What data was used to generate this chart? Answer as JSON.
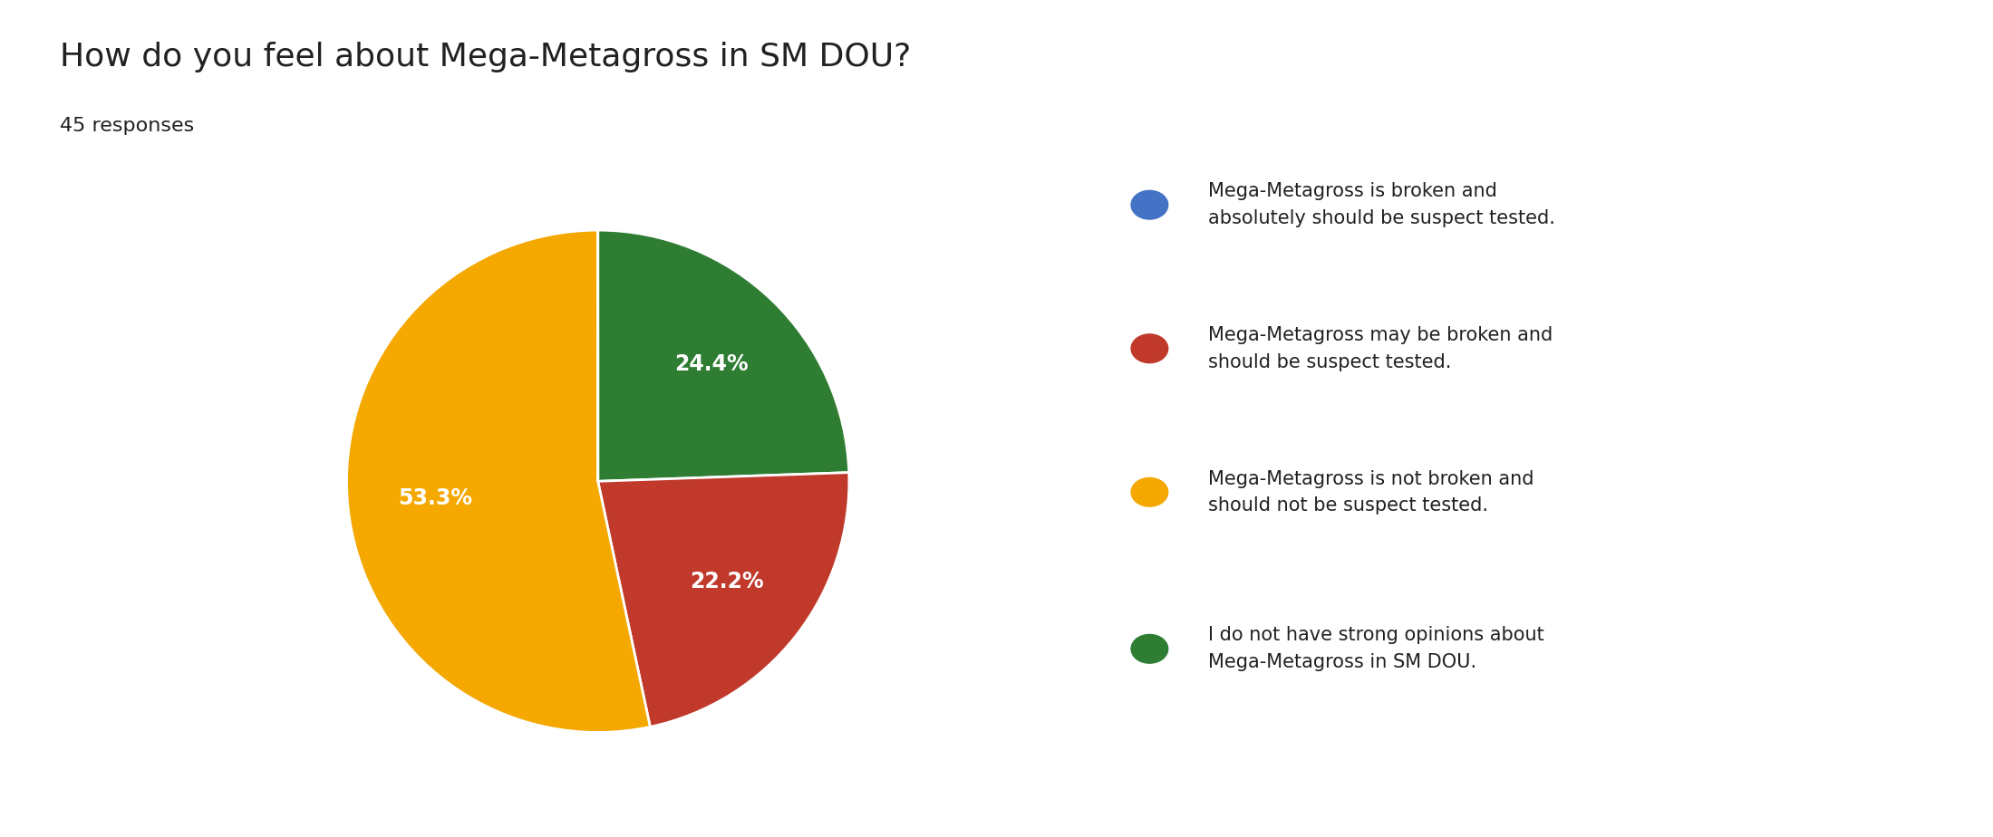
{
  "title": "How do you feel about Mega-Metagross in SM DOU?",
  "subtitle": "45 responses",
  "slices": [
    {
      "label": "Mega-Metagross is broken and\nabsolutely should be suspect tested.",
      "value": 0.001,
      "color": "#4472C4",
      "pct": ""
    },
    {
      "label": "Mega-Metagross may be broken and\nshould be suspect tested.",
      "value": 10,
      "color": "#C0392B",
      "pct": "22.2%"
    },
    {
      "label": "Mega-Metagross is not broken and\nshould not be suspect tested.",
      "value": 24,
      "color": "#F4A800",
      "pct": "53.3%"
    },
    {
      "label": "I do not have strong opinions about\nMega-Metagross in SM DOU.",
      "value": 11,
      "color": "#2E7D32",
      "pct": "24.4%"
    }
  ],
  "legend_labels": [
    "Mega-Metagross is broken and\nabsolutely should be suspect tested.",
    "Mega-Metagross may be broken and\nshould be suspect tested.",
    "Mega-Metagross is not broken and\nshould not be suspect tested.",
    "I do not have strong opinions about\nMega-Metagross in SM DOU."
  ],
  "legend_colors": [
    "#4472C4",
    "#C0392B",
    "#F4A800",
    "#2E7D32"
  ],
  "title_fontsize": 26,
  "subtitle_fontsize": 16,
  "text_color": "#212121",
  "background_color": "#ffffff",
  "pct_labels": [
    "",
    "22.2%",
    "53.3%",
    "24.4%"
  ],
  "startangle": 90
}
